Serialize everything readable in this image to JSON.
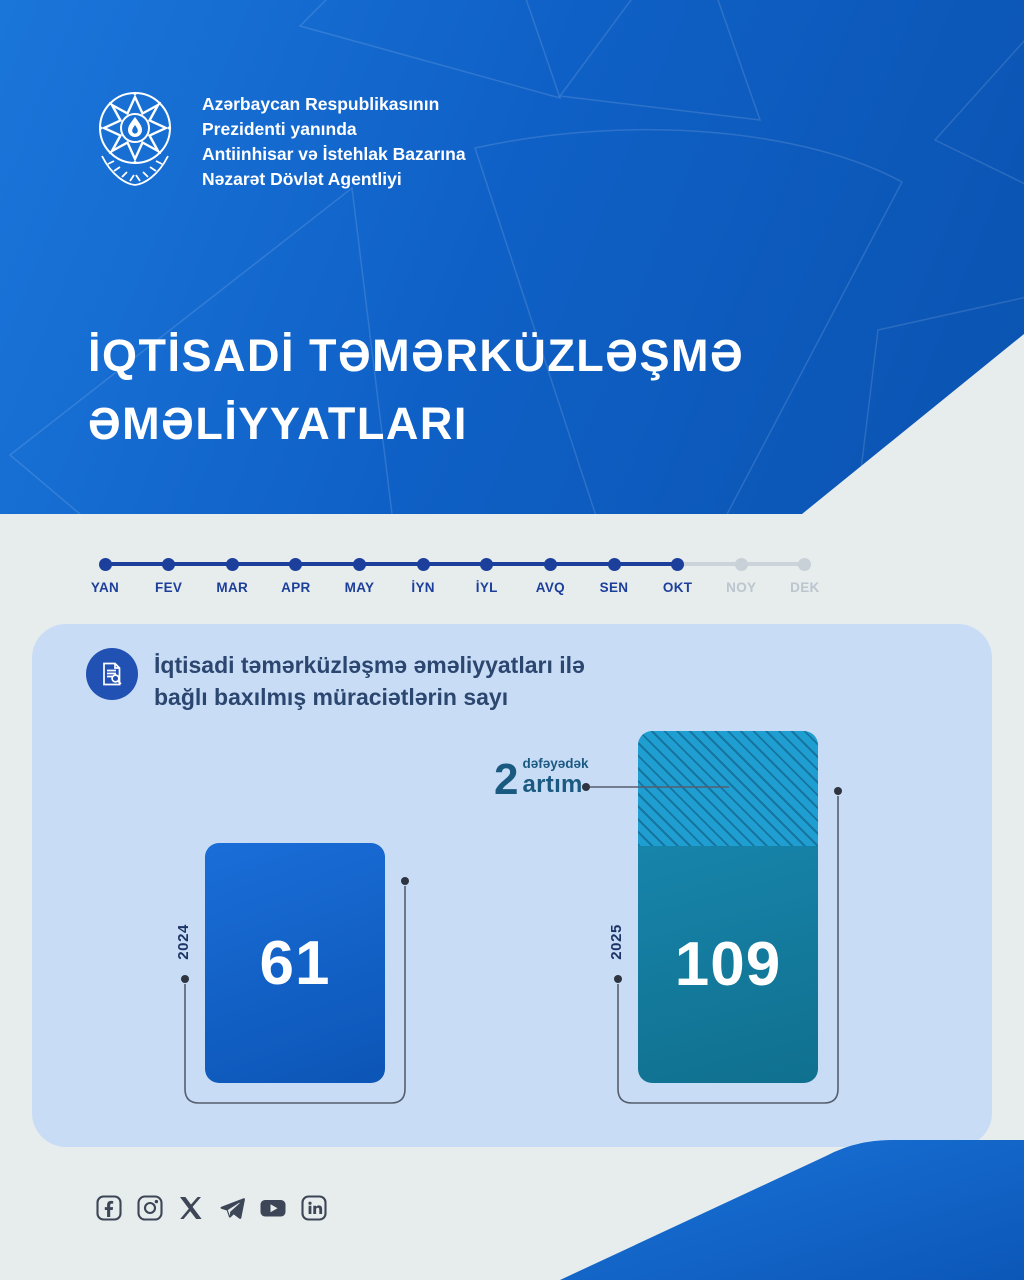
{
  "header": {
    "logo": "azerbaijan-state-emblem",
    "agency_name_lines": [
      "Azərbaycan Respublikasının",
      "Prezidenti yanında",
      "Antiinhisar və İstehlak Bazarına",
      "Nəzarət Dövlət Agentliyi"
    ],
    "title_lines": [
      "İQTİSADİ TƏMƏRKÜZLƏŞMƏ",
      "ƏMƏLİYYATLARI"
    ]
  },
  "timeline": {
    "months": [
      "YAN",
      "FEV",
      "MAR",
      "APR",
      "MAY",
      "İYN",
      "İYL",
      "AVQ",
      "SEN",
      "OKT",
      "NOY",
      "DEK"
    ],
    "active_count": 10,
    "active_color": "#1d3f9c",
    "inactive_color": "#c9d1d8"
  },
  "card": {
    "icon": "document-search-icon",
    "heading_lines": [
      "İqtisadi təmərküzləşmə əməliyyatları ilə",
      "bağlı baxılmış müraciətlərin sayı"
    ]
  },
  "chart_data": {
    "type": "bar",
    "title": "İqtisadi təmərküzləşmə əməliyyatları ilə bağlı baxılmış müraciətlərin sayı",
    "categories": [
      "2024",
      "2025"
    ],
    "values": [
      61,
      109
    ],
    "bar_colors": [
      "#0f5fc6",
      "#157a9e"
    ],
    "hatch_color": "#1f9ed2",
    "annotation": {
      "number": "2",
      "small_text": "dəfəyədək",
      "word": "artım"
    },
    "legend_position": "none",
    "grid": false
  },
  "footer": {
    "social_icons": [
      "facebook",
      "instagram",
      "x-twitter",
      "telegram",
      "youtube",
      "linkedin"
    ]
  }
}
